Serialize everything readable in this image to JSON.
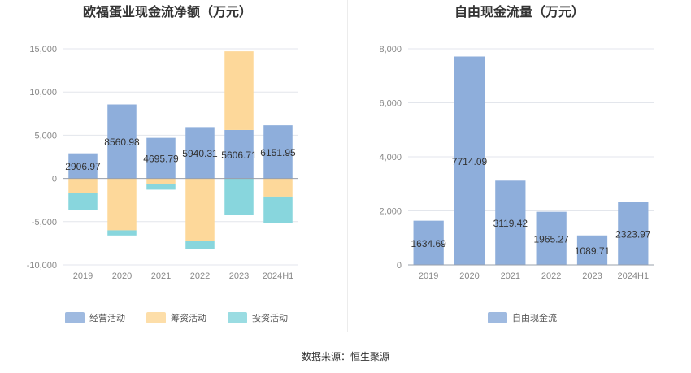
{
  "source": "数据来源：恒生聚源",
  "colors": {
    "operating": "#8eaedb",
    "financing": "#fdd89a",
    "investing": "#88d6dd",
    "free": "#8eaedb",
    "grid": "#e3e6ec",
    "axis_text": "#888888",
    "title": "#333333"
  },
  "chart_data": [
    {
      "type": "bar",
      "stacked": true,
      "title": "欧福蛋业现金流净额（万元）",
      "categories": [
        "2019",
        "2020",
        "2021",
        "2022",
        "2023",
        "2024H1"
      ],
      "ylim": [
        -10000,
        15000
      ],
      "yticks": [
        -10000,
        -5000,
        0,
        5000,
        10000,
        15000
      ],
      "ytick_labels": [
        "-10,000",
        "-5,000",
        "0",
        "5,000",
        "10,000",
        "15,000"
      ],
      "grid": true,
      "legend": "bottom",
      "series": [
        {
          "name": "经营活动",
          "color_key": "operating",
          "values": [
            2906.97,
            8560.98,
            4695.79,
            5940.31,
            5606.71,
            6151.95
          ],
          "labels": [
            "2906.97",
            "8560.98",
            "4695.79",
            "5940.31",
            "5606.71",
            "6151.95"
          ]
        },
        {
          "name": "筹资活动",
          "color_key": "financing",
          "values": [
            -1700,
            -6000,
            -600,
            -7200,
            9100,
            -2100
          ]
        },
        {
          "name": "投资活动",
          "color_key": "investing",
          "values": [
            -2000,
            -600,
            -700,
            -1000,
            -4200,
            -3100
          ]
        }
      ]
    },
    {
      "type": "bar",
      "title": "自由现金流量（万元）",
      "categories": [
        "2019",
        "2020",
        "2021",
        "2022",
        "2023",
        "2024H1"
      ],
      "ylim": [
        0,
        8000
      ],
      "yticks": [
        0,
        2000,
        4000,
        6000,
        8000
      ],
      "ytick_labels": [
        "0",
        "2,000",
        "4,000",
        "6,000",
        "8,000"
      ],
      "grid": true,
      "legend": "bottom",
      "series": [
        {
          "name": "自由现金流",
          "color_key": "free",
          "values": [
            1634.69,
            7714.09,
            3119.42,
            1965.27,
            1089.71,
            2323.97
          ],
          "labels": [
            "1634.69",
            "7714.09",
            "3119.42",
            "1965.27",
            "1089.71",
            "2323.97"
          ]
        }
      ]
    }
  ]
}
